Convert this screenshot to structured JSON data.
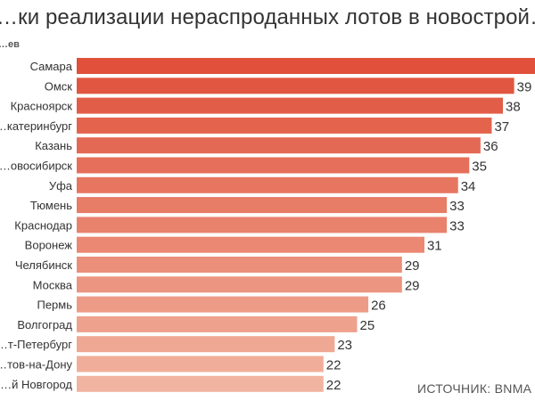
{
  "chart_data": {
    "type": "bar",
    "orientation": "horizontal",
    "title": "…ки реализации нераспроданных лотов в новострой…",
    "unit_label": "…ев",
    "categories": [
      "Самара",
      "Омск",
      "Красноярск",
      "…катеринбург",
      "Казань",
      "…овосибирск",
      "Уфа",
      "Тюмень",
      "Краснодар",
      "Воронеж",
      "Челябинск",
      "Москва",
      "Пермь",
      "Волгоград",
      "…т-Петербург",
      "…тов-на-Дону",
      "…й Новгород"
    ],
    "values": [
      41,
      39,
      38,
      37,
      36,
      35,
      34,
      33,
      33,
      31,
      29,
      29,
      26,
      25,
      23,
      22,
      22
    ],
    "data_labels": [
      "",
      "39",
      "38",
      "37",
      "36",
      "35",
      "34",
      "33",
      "33",
      "31",
      "29",
      "29",
      "26",
      "25",
      "23",
      "22",
      "22"
    ],
    "color_scale": [
      "#e0503a",
      "#f1b4a0"
    ],
    "legend": "none",
    "grid": false
  },
  "source": "ИСТОЧНИК: BNMA"
}
